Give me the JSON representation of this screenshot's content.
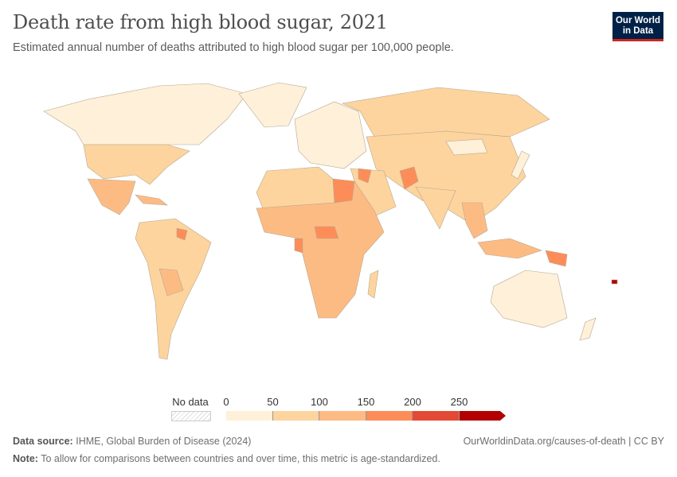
{
  "header": {
    "title": "Death rate from high blood sugar, 2021",
    "subtitle": "Estimated annual number of deaths attributed to high blood sugar per 100,000 people.",
    "logo": "Our World in Data"
  },
  "legend": {
    "no_data": "No data",
    "ticks": [
      "0",
      "50",
      "100",
      "150",
      "200",
      "250"
    ],
    "bins": [
      "#fef0d9",
      "#fdd49e",
      "#fdbb84",
      "#fc8d59",
      "#e34a33",
      "#b30000"
    ],
    "no_data_color": "#dddddd"
  },
  "map": {
    "fills": {
      "canada": "#fef0d9",
      "greenland": "#fef0d9",
      "usa": "#fdd49e",
      "mexico": "#fdbb84",
      "caribbean": "#fdbb84",
      "southamerica": "#fdd49e",
      "bolivia": "#fdbb84",
      "guyana": "#fc8d59",
      "europe": "#fef0d9",
      "russia": "#fdd49e",
      "asia": "#fdd49e",
      "mongolia": "#fef0d9",
      "india": "#fdd49e",
      "middleeast": "#fdd49e",
      "afghanistan": "#fc8d59",
      "iraq": "#fc8d59",
      "africa": "#fdbb84",
      "northafrica": "#fdd49e",
      "egypt": "#fc8d59",
      "chad": "#fc8d59",
      "gabon": "#fc8d59",
      "seasia": "#fdbb84",
      "indonesia": "#fdbb84",
      "png": "#fc8d59",
      "australia": "#fef0d9",
      "newzealand": "#fef0d9",
      "madagascar": "#fdd49e",
      "japan": "#fef0d9",
      "fiji": "#b30000"
    }
  },
  "footer": {
    "source_label": "Data source:",
    "source": "IHME, Global Burden of Disease (2024)",
    "url": "OurWorldinData.org/causes-of-death | CC BY",
    "note_label": "Note:",
    "note": "To allow for comparisons between countries and over time, this metric is age-standardized."
  }
}
